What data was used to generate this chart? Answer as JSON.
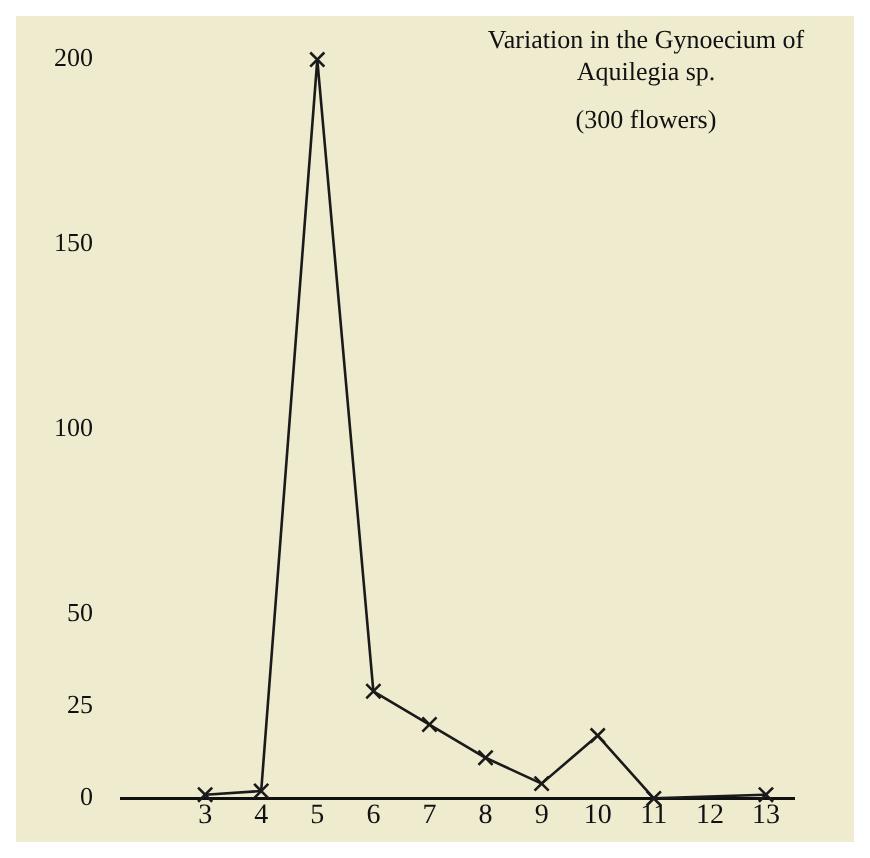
{
  "chart_data": {
    "type": "line",
    "title": "Variation in the Gynoecium of Aquilegia sp.",
    "subtitle": "(300 flowers)",
    "x": [
      3,
      4,
      5,
      6,
      7,
      8,
      9,
      10,
      11,
      13
    ],
    "series": [
      {
        "color": "#1a1a1a",
        "values": [
          1,
          2,
          200,
          29,
          20,
          11,
          4,
          17,
          0,
          1
        ]
      }
    ],
    "xlim": [
      1.5,
      13.5
    ],
    "xticks": [
      3,
      4,
      5,
      6,
      7,
      8,
      9,
      10,
      11,
      12,
      13
    ],
    "ylim": [
      0,
      200
    ],
    "yticks": [
      0,
      25,
      50,
      100,
      150,
      200
    ],
    "grid": false,
    "legend": false,
    "marker": "cross",
    "line_style": "solid"
  }
}
